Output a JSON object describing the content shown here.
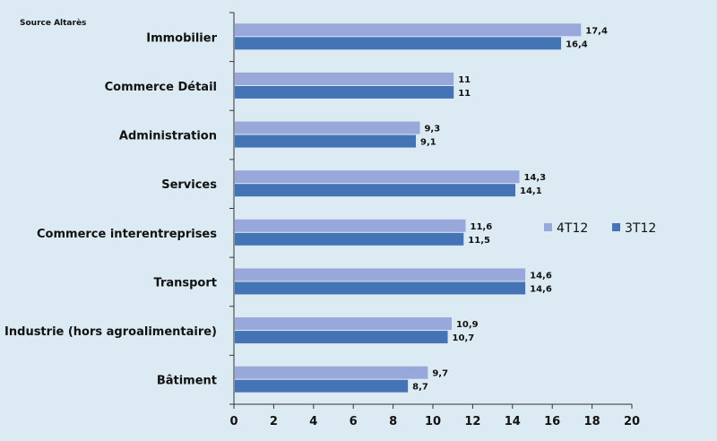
{
  "chart_data": {
    "type": "bar",
    "orientation": "horizontal",
    "source": "Source Altarès",
    "categories": [
      "Immobilier",
      "Commerce Détail",
      "Administration",
      "Services",
      "Commerce interentreprises",
      "Transport",
      "Industrie (hors agroalimentaire)",
      "Bâtiment"
    ],
    "series": [
      {
        "name": "4T12",
        "color": "#98a8da",
        "values": [
          17.4,
          11,
          9.3,
          14.3,
          11.6,
          14.6,
          10.9,
          9.7
        ],
        "labels": [
          "17,4",
          "11",
          "9,3",
          "14,3",
          "11,6",
          "14,6",
          "10,9",
          "9,7"
        ]
      },
      {
        "name": "3T12",
        "color": "#4574b6",
        "values": [
          16.4,
          11,
          9.1,
          14.1,
          11.5,
          14.6,
          10.7,
          8.7
        ],
        "labels": [
          "16,4",
          "11",
          "9,1",
          "14,1",
          "11,5",
          "14,6",
          "10,7",
          "8,7"
        ]
      }
    ],
    "xlim": [
      0,
      20
    ],
    "xticks": [
      "0",
      "2",
      "4",
      "6",
      "8",
      "10",
      "12",
      "14",
      "16",
      "18",
      "20"
    ],
    "legend_position": "right",
    "title": "",
    "xlabel": "",
    "ylabel": ""
  }
}
